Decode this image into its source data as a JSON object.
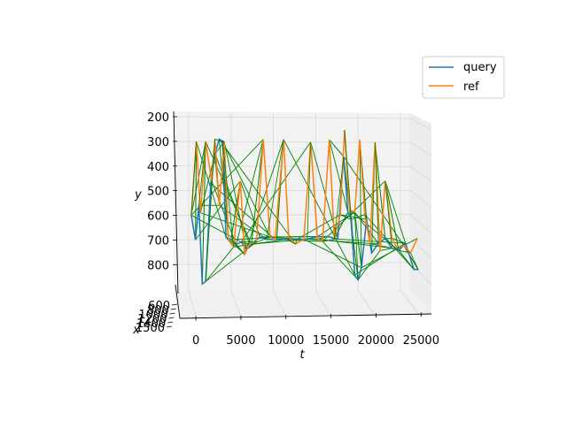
{
  "chart_data": {
    "type": "line",
    "projection": "3d",
    "title": "",
    "xlabel": "t",
    "ylabel": "y",
    "zlabel": "x",
    "t_ticks": [
      "0",
      "5000",
      "10000",
      "15000",
      "20000",
      "25000"
    ],
    "t_range": [
      -2000,
      28500
    ],
    "y_ticks": [
      "200",
      "300",
      "400",
      "500",
      "600",
      "700",
      "800"
    ],
    "y_range": [
      200,
      860
    ],
    "x_ticks": [
      "600",
      "800",
      "1000",
      "1200",
      "1400",
      "1500"
    ],
    "legend": {
      "placement": "top-right",
      "entries": [
        "query",
        "ref"
      ]
    },
    "grid": true,
    "colors": {
      "query": "#1f77b4",
      "ref": "#ff7f0e",
      "matches": "#008000"
    },
    "series": [
      {
        "name": "query",
        "points": [
          [
            300,
            600
          ],
          [
            800,
            700
          ],
          [
            1200,
            560
          ],
          [
            1600,
            880
          ],
          [
            2000,
            870
          ],
          [
            2600,
            470
          ],
          [
            3100,
            350
          ],
          [
            3600,
            290
          ],
          [
            4000,
            300
          ],
          [
            4400,
            690
          ],
          [
            5000,
            700
          ],
          [
            5600,
            720
          ],
          [
            6200,
            710
          ],
          [
            6800,
            740
          ],
          [
            7400,
            720
          ],
          [
            8400,
            690
          ],
          [
            9200,
            700
          ],
          [
            10400,
            700
          ],
          [
            11600,
            700
          ],
          [
            12800,
            700
          ],
          [
            14000,
            700
          ],
          [
            15200,
            690
          ],
          [
            16400,
            690
          ],
          [
            17600,
            700
          ],
          [
            18300,
            360
          ],
          [
            18800,
            590
          ],
          [
            19200,
            620
          ],
          [
            19600,
            850
          ],
          [
            20000,
            870
          ],
          [
            20400,
            820
          ],
          [
            21000,
            620
          ],
          [
            21600,
            760
          ],
          [
            22400,
            720
          ],
          [
            23200,
            700
          ],
          [
            24000,
            740
          ],
          [
            24800,
            750
          ],
          [
            25600,
            720
          ],
          [
            26600,
            830
          ],
          [
            27100,
            830
          ]
        ]
      },
      {
        "name": "ref",
        "points": [
          [
            300,
            600
          ],
          [
            900,
            300
          ],
          [
            1400,
            590
          ],
          [
            2000,
            300
          ],
          [
            2700,
            460
          ],
          [
            3100,
            290
          ],
          [
            3600,
            560
          ],
          [
            4200,
            300
          ],
          [
            4700,
            700
          ],
          [
            5300,
            730
          ],
          [
            6100,
            460
          ],
          [
            6600,
            760
          ],
          [
            7200,
            720
          ],
          [
            8000,
            710
          ],
          [
            8800,
            290
          ],
          [
            9600,
            690
          ],
          [
            10200,
            700
          ],
          [
            11200,
            290
          ],
          [
            11800,
            690
          ],
          [
            12600,
            720
          ],
          [
            13600,
            700
          ],
          [
            14400,
            300
          ],
          [
            15200,
            700
          ],
          [
            15800,
            710
          ],
          [
            16600,
            290
          ],
          [
            17200,
            700
          ],
          [
            17900,
            600
          ],
          [
            18400,
            250
          ],
          [
            19000,
            580
          ],
          [
            19600,
            590
          ],
          [
            20200,
            290
          ],
          [
            20800,
            600
          ],
          [
            21400,
            720
          ],
          [
            22000,
            300
          ],
          [
            22600,
            750
          ],
          [
            23200,
            460
          ],
          [
            24000,
            700
          ],
          [
            24600,
            740
          ],
          [
            25400,
            730
          ],
          [
            26200,
            760
          ],
          [
            27000,
            700
          ]
        ]
      }
    ]
  }
}
